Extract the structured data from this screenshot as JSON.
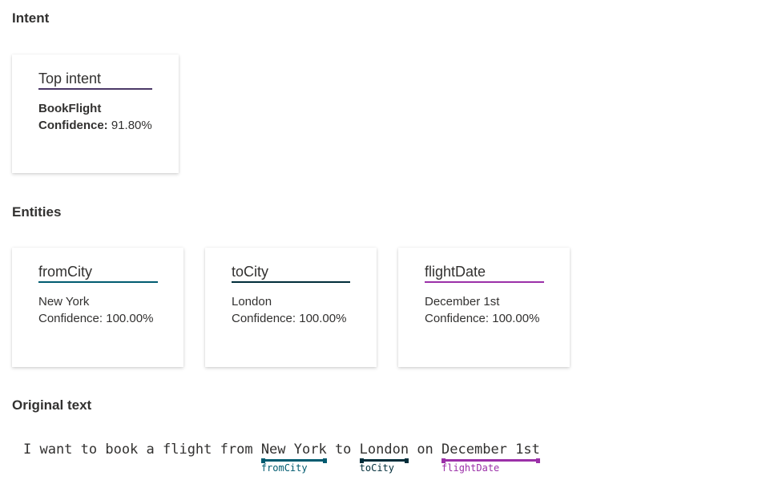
{
  "intent": {
    "heading": "Intent",
    "card_title": "Top intent",
    "name": "BookFlight",
    "confidence_label": "Confidence:",
    "confidence": "91.80%",
    "color": "#4b3867"
  },
  "entities": {
    "heading": "Entities",
    "items": [
      {
        "type": "fromCity",
        "value": "New York",
        "confidence_label": "Confidence:",
        "confidence": "100.00%",
        "color": "#005b70"
      },
      {
        "type": "toCity",
        "value": "London",
        "confidence_label": "Confidence:",
        "confidence": "100.00%",
        "color": "#002d3a"
      },
      {
        "type": "flightDate",
        "value": "December 1st",
        "confidence_label": "Confidence:",
        "confidence": "100.00%",
        "color": "#9b30a8"
      }
    ]
  },
  "original": {
    "heading": "Original text",
    "parts": [
      "I want to book a flight from ",
      "New York",
      " to ",
      "London",
      " on ",
      "December 1st"
    ]
  }
}
